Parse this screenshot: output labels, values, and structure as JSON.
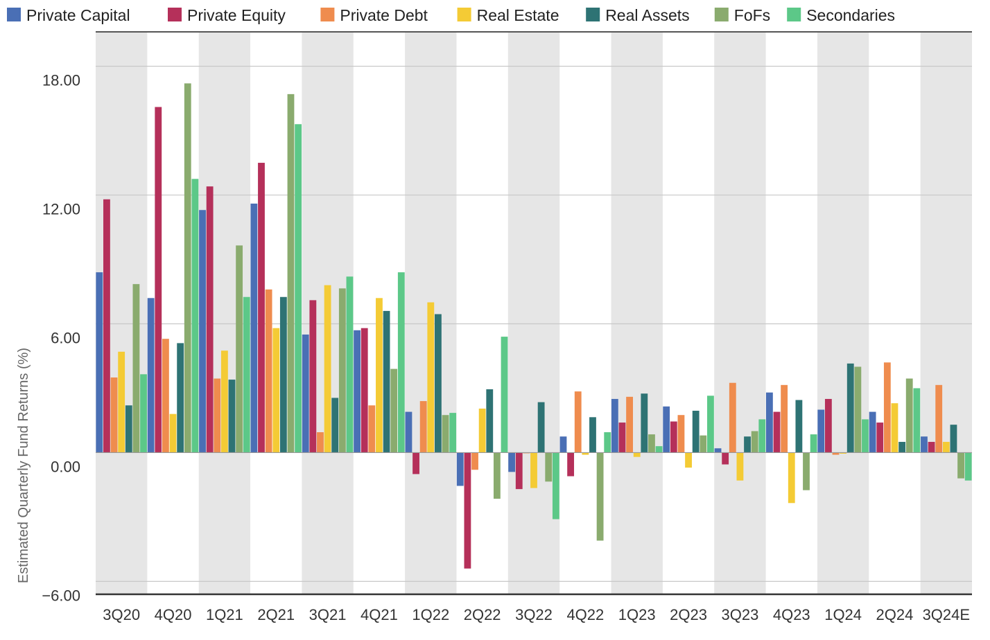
{
  "chart_data": {
    "type": "bar",
    "title": "",
    "xlabel": "",
    "ylabel": "Estimated Quarterly Fund Returns (%)",
    "ylim": [
      -6.6,
      19.6
    ],
    "yticks": [
      -6,
      0,
      6,
      12,
      18
    ],
    "ytick_labels": [
      "−6.00",
      "0.00",
      "6.00",
      "12.00",
      "18.00"
    ],
    "grid": true,
    "legend_position": "top",
    "alternating_band_color": "#e6e6e6",
    "categories": [
      "3Q20",
      "4Q20",
      "1Q21",
      "2Q21",
      "3Q21",
      "4Q21",
      "1Q22",
      "2Q22",
      "3Q22",
      "4Q22",
      "1Q23",
      "2Q23",
      "3Q23",
      "4Q23",
      "1Q24",
      "2Q24",
      "3Q24E"
    ],
    "series": [
      {
        "name": "Private Capital",
        "color": "#4a6fb5",
        "values": [
          8.4,
          7.2,
          11.3,
          11.6,
          5.5,
          5.7,
          1.9,
          -1.55,
          -0.9,
          0.75,
          2.5,
          2.15,
          0.2,
          2.8,
          2.0,
          1.9,
          0.75
        ]
      },
      {
        "name": "Private Equity",
        "color": "#b5305a",
        "values": [
          11.8,
          16.1,
          12.4,
          13.5,
          7.1,
          5.8,
          -1.0,
          -5.4,
          -1.7,
          -1.1,
          1.4,
          1.45,
          -0.55,
          1.9,
          2.5,
          1.4,
          0.5
        ]
      },
      {
        "name": "Private Debt",
        "color": "#ef8c4e",
        "values": [
          3.5,
          5.3,
          3.45,
          7.6,
          0.95,
          2.2,
          2.4,
          -0.8,
          0.0,
          2.85,
          2.6,
          1.75,
          3.25,
          3.15,
          -0.1,
          4.2,
          3.15
        ]
      },
      {
        "name": "Real Estate",
        "color": "#f4cb35",
        "values": [
          4.7,
          1.8,
          4.75,
          5.8,
          7.8,
          7.2,
          7.0,
          2.05,
          -1.65,
          -0.1,
          -0.2,
          -0.7,
          -1.3,
          -2.35,
          -0.05,
          2.3,
          0.5
        ]
      },
      {
        "name": "Real Assets",
        "color": "#2e7374",
        "values": [
          2.2,
          5.1,
          3.4,
          7.25,
          2.55,
          6.6,
          6.45,
          2.95,
          2.35,
          1.65,
          2.75,
          1.95,
          0.75,
          2.45,
          4.15,
          0.5,
          1.3
        ]
      },
      {
        "name": "FoFs",
        "color": "#8aab6e",
        "values": [
          7.85,
          17.2,
          9.65,
          16.7,
          7.65,
          3.9,
          1.75,
          -2.15,
          -1.35,
          -4.1,
          0.85,
          0.8,
          1.0,
          -1.75,
          4.0,
          3.45,
          -1.2
        ]
      },
      {
        "name": "Secondaries",
        "color": "#5cc888",
        "values": [
          3.65,
          12.75,
          7.25,
          15.3,
          8.2,
          8.4,
          1.85,
          5.4,
          -3.1,
          0.95,
          0.3,
          2.65,
          1.55,
          0.85,
          1.55,
          3.0,
          -1.3
        ]
      }
    ]
  }
}
